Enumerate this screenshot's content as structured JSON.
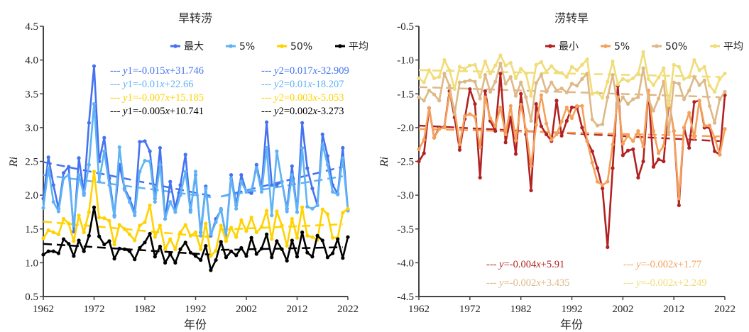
{
  "chart_data": [
    {
      "type": "line",
      "title": "旱转涝",
      "xlabel": "年份",
      "ylabel": "Ri",
      "xlim": [
        1962,
        2022
      ],
      "ylim": [
        0.5,
        4.5
      ],
      "xticks": [
        "1962",
        "1972",
        "1982",
        "1992",
        "2002",
        "2012",
        "2022"
      ],
      "yticks": [
        "0.5",
        "1.0",
        "1.5",
        "2.0",
        "2.5",
        "3.0",
        "3.5",
        "4.0",
        "4.5"
      ],
      "grid": false,
      "legend": "top-right",
      "x_start": 1962,
      "series": [
        {
          "name": "最大",
          "color": "#4472f0",
          "values": [
            1.95,
            2.56,
            2.15,
            1.8,
            2.33,
            2.42,
            1.46,
            2.55,
            2.03,
            3.07,
            3.91,
            2.5,
            2.85,
            2.25,
            1.7,
            2.45,
            2.1,
            1.95,
            1.75,
            2.79,
            2.8,
            2.65,
            1.95,
            2.7,
            1.65,
            2.2,
            1.8,
            2.15,
            2.6,
            1.78,
            2.3,
            1.45,
            2.13,
            1.4,
            1.65,
            1.78,
            1.4,
            2.3,
            1.85,
            2.3,
            2.05,
            2.03,
            2.45,
            2.1,
            3.08,
            2.15,
            2.15,
            2.2,
            1.8,
            2.43,
            1.75,
            3.07,
            2.4,
            2.1,
            1.85,
            2.9,
            2.58,
            2.15,
            2.02,
            2.7,
            1.78
          ]
        },
        {
          "name": "5%",
          "color": "#5fb3f5",
          "values": [
            1.81,
            2.4,
            1.9,
            1.76,
            2.25,
            2.3,
            1.55,
            2.3,
            2.0,
            2.45,
            3.35,
            2.2,
            2.65,
            2.15,
            1.68,
            2.71,
            2.08,
            1.9,
            1.7,
            2.35,
            2.51,
            2.5,
            1.9,
            2.45,
            1.65,
            1.9,
            1.75,
            2.0,
            2.35,
            1.75,
            2.35,
            1.4,
            2.1,
            1.42,
            1.6,
            1.8,
            1.4,
            2.25,
            1.8,
            2.2,
            2.05,
            2.08,
            2.4,
            2.05,
            2.7,
            1.7,
            2.65,
            2.2,
            1.76,
            2.3,
            1.75,
            2.7,
            1.83,
            1.8,
            1.85,
            2.75,
            2.45,
            2.05,
            2.01,
            2.55,
            1.77
          ]
        },
        {
          "name": "50%",
          "color": "#ffd200",
          "values": [
            1.36,
            1.48,
            1.45,
            1.42,
            1.65,
            1.58,
            1.32,
            1.7,
            1.45,
            1.75,
            2.35,
            1.67,
            1.66,
            1.62,
            1.27,
            1.56,
            1.5,
            1.42,
            1.33,
            1.55,
            1.6,
            1.85,
            1.38,
            1.55,
            1.2,
            1.35,
            1.2,
            1.45,
            1.56,
            1.4,
            1.45,
            1.2,
            1.58,
            1.1,
            1.18,
            1.55,
            1.32,
            1.52,
            1.38,
            1.63,
            1.47,
            1.67,
            1.45,
            1.53,
            1.77,
            1.35,
            1.76,
            1.55,
            1.25,
            1.65,
            1.37,
            1.82,
            1.4,
            1.38,
            1.34,
            1.79,
            1.72,
            1.37,
            1.37,
            1.74,
            1.8
          ]
        },
        {
          "name": "平均",
          "color": "#000000",
          "values": [
            1.12,
            1.17,
            1.17,
            1.14,
            1.35,
            1.28,
            1.1,
            1.33,
            1.17,
            1.4,
            1.82,
            1.39,
            1.27,
            1.32,
            1.06,
            1.21,
            1.2,
            1.17,
            1.05,
            1.22,
            1.3,
            1.43,
            1.09,
            1.24,
            1.0,
            1.13,
            1.0,
            1.2,
            1.3,
            1.15,
            1.1,
            1.04,
            1.25,
            0.89,
            1.04,
            1.31,
            1.08,
            1.17,
            1.11,
            1.22,
            1.1,
            1.37,
            1.13,
            1.21,
            1.42,
            1.08,
            1.32,
            1.2,
            1.03,
            1.33,
            1.09,
            1.45,
            1.15,
            1.09,
            1.4,
            1.33,
            1.08,
            1.14,
            1.35,
            1.07,
            1.38
          ]
        }
      ],
      "trend_lines": [
        {
          "series": "最大",
          "color": "#4472f0",
          "segments": [
            {
              "x": [
                1962,
                1995
              ],
              "y": [
                2.49,
                1.99
              ]
            },
            {
              "x": [
                1997,
                2021
              ],
              "y": [
                1.98,
                2.42
              ]
            }
          ]
        },
        {
          "series": "5%",
          "color": "#5fb3f5",
          "segments": [
            {
              "x": [
                1962,
                1995
              ],
              "y": [
                2.3,
                1.97
              ]
            },
            {
              "x": [
                1997,
                2021
              ],
              "y": [
                1.98,
                2.28
              ]
            }
          ]
        },
        {
          "series": "50%",
          "color": "#ffd200",
          "segments": [
            {
              "x": [
                1962,
                1995
              ],
              "y": [
                1.61,
                1.38
              ]
            },
            {
              "x": [
                1997,
                2021
              ],
              "y": [
                1.49,
                1.57
              ]
            }
          ]
        },
        {
          "series": "平均",
          "color": "#000000",
          "segments": [
            {
              "x": [
                1962,
                1995
              ],
              "y": [
                1.28,
                1.12
              ]
            },
            {
              "x": [
                1997,
                2021
              ],
              "y": [
                1.19,
                1.23
              ]
            }
          ]
        }
      ],
      "annotations": {
        "left": [
          {
            "prefix": "y",
            "sub": "1",
            "eq": "=-0.015",
            "x": "x",
            "rest": "+31.746",
            "color": "#4472f0"
          },
          {
            "prefix": "y",
            "sub": "1",
            "eq": "=-0.01",
            "x": "x",
            "rest": "+22.66",
            "color": "#5fb3f5"
          },
          {
            "prefix": "y",
            "sub": "1",
            "eq": "=-0.007",
            "x": "x",
            "rest": "+15.185",
            "color": "#ffd200"
          },
          {
            "prefix": "y",
            "sub": "1",
            "eq": "=-0.005",
            "x": "x",
            "rest": "+10.741",
            "color": "#000000"
          }
        ],
        "right": [
          {
            "prefix": "y",
            "sub": "2",
            "eq": "=0.017",
            "x": "x",
            "rest": "-32.909",
            "color": "#4472f0"
          },
          {
            "prefix": "y",
            "sub": "2",
            "eq": "=0.01",
            "x": "x",
            "rest": "-18.207",
            "color": "#5fb3f5"
          },
          {
            "prefix": "y",
            "sub": "2",
            "eq": "=0.003",
            "x": "x",
            "rest": "-5.053",
            "color": "#ffd200"
          },
          {
            "prefix": "y",
            "sub": "2",
            "eq": "=0.002",
            "x": "x",
            "rest": "-3.273",
            "color": "#000000"
          }
        ]
      }
    },
    {
      "type": "line",
      "title": "涝转旱",
      "xlabel": "年份",
      "ylabel": "Ri",
      "xlim": [
        1962,
        2022
      ],
      "ylim": [
        -4.5,
        -0.5
      ],
      "xticks": [
        "1962",
        "1972",
        "1982",
        "1992",
        "2002",
        "2012",
        "2022"
      ],
      "yticks": [
        "-4.5",
        "-4.0",
        "-3.5",
        "-3.0",
        "-2.5",
        "-2.0",
        "-1.5",
        "-1.0",
        "-0.5"
      ],
      "grid": false,
      "legend": "top-right",
      "x_start": 1962,
      "series": [
        {
          "name": "最小",
          "color": "#b22222",
          "values": [
            -2.5,
            -2.38,
            -1.71,
            -2.15,
            -2.0,
            -1.99,
            -1.46,
            -1.85,
            -2.33,
            -1.87,
            -1.43,
            -1.65,
            -2.74,
            -1.46,
            -1.9,
            -2.05,
            -1.2,
            -2.22,
            -1.85,
            -2.39,
            -1.5,
            -2.1,
            -2.93,
            -1.65,
            -1.98,
            -2.1,
            -2.2,
            -1.6,
            -2.12,
            -1.9,
            -1.7,
            -1.7,
            -2.0,
            -2.2,
            -2.35,
            -2.6,
            -2.9,
            -3.77,
            -2.6,
            -1.38,
            -2.41,
            -2.34,
            -2.32,
            -2.74,
            -2.5,
            -1.45,
            -2.58,
            -2.47,
            -2.5,
            -1.6,
            -2.05,
            -3.15,
            -2.0,
            -2.3,
            -1.62,
            -1.6,
            -2.0,
            -2.0,
            -2.35,
            -2.4,
            -1.52
          ]
        },
        {
          "name": "5%",
          "color": "#f5a05a",
          "values": [
            -2.32,
            -2.18,
            -1.71,
            -2.15,
            -2.02,
            -2.0,
            -1.5,
            -1.73,
            -2.25,
            -1.83,
            -1.8,
            -1.84,
            -2.29,
            -1.55,
            -1.86,
            -1.98,
            -1.7,
            -2.1,
            -1.68,
            -2.19,
            -1.66,
            -2.03,
            -2.57,
            -1.96,
            -1.52,
            -1.94,
            -2.18,
            -2.1,
            -1.91,
            -1.7,
            -1.86,
            -1.68,
            -1.68,
            -2.2,
            -2.52,
            -2.8,
            -2.85,
            -2.8,
            -2.25,
            -1.55,
            -2.24,
            -2.12,
            -2.2,
            -2.05,
            -2.28,
            -1.45,
            -2.05,
            -2.38,
            -2.27,
            -1.59,
            -2.05,
            -3.05,
            -2.0,
            -1.78,
            -2.15,
            -1.6,
            -1.97,
            -1.97,
            -2.15,
            -2.4,
            -2.02
          ]
        },
        {
          "name": "50%",
          "color": "#deb887",
          "values": [
            -1.55,
            -1.6,
            -1.45,
            -1.51,
            -1.6,
            -1.2,
            -1.38,
            -1.8,
            -1.33,
            -1.32,
            -1.3,
            -1.32,
            -1.57,
            -1.22,
            -1.47,
            -1.32,
            -1.05,
            -1.35,
            -1.25,
            -1.53,
            -1.33,
            -1.55,
            -1.9,
            -1.34,
            -1.22,
            -1.47,
            -1.33,
            -1.45,
            -1.42,
            -1.48,
            -1.35,
            -1.38,
            -1.28,
            -1.2,
            -1.88,
            -1.97,
            -1.95,
            -1.55,
            -1.22,
            -1.69,
            -1.55,
            -1.65,
            -1.58,
            -1.55,
            -1.12,
            -1.58,
            -1.75,
            -1.57,
            -1.32,
            -2.07,
            -1.33,
            -1.35,
            -1.58,
            -1.45,
            -1.25,
            -1.37,
            -1.3,
            -1.68,
            -1.93,
            -1.58,
            -1.47
          ]
        },
        {
          "name": "平均",
          "color": "#f0dc78",
          "values": [
            -1.27,
            -1.33,
            -1.15,
            -1.27,
            -1.25,
            -1.0,
            -1.15,
            -1.43,
            -1.1,
            -1.13,
            -1.08,
            -1.07,
            -1.25,
            -1.02,
            -1.2,
            -1.08,
            -0.93,
            -1.08,
            -1.04,
            -1.27,
            -1.13,
            -1.2,
            -1.53,
            -1.07,
            -1.03,
            -1.17,
            -1.09,
            -1.17,
            -1.19,
            -1.25,
            -1.1,
            -1.15,
            -1.07,
            -0.99,
            -1.5,
            -1.48,
            -1.56,
            -1.32,
            -1.02,
            -1.36,
            -1.28,
            -1.31,
            -1.27,
            -1.2,
            -0.88,
            -1.28,
            -1.37,
            -1.26,
            -1.12,
            -1.67,
            -1.07,
            -1.1,
            -1.28,
            -1.25,
            -1.0,
            -1.15,
            -1.1,
            -1.38,
            -1.47,
            -1.28,
            -1.2
          ]
        }
      ],
      "trend_lines": [
        {
          "series": "最小",
          "color": "#b22222",
          "segments": [
            {
              "x": [
                1962,
                2021
              ],
              "y": [
                -1.97,
                -2.2
              ]
            }
          ]
        },
        {
          "series": "5%",
          "color": "#f5a05a",
          "segments": [
            {
              "x": [
                1962,
                2021
              ],
              "y": [
                -2.02,
                -2.13
              ]
            }
          ]
        },
        {
          "series": "50%",
          "color": "#deb887",
          "segments": [
            {
              "x": [
                1962,
                2021
              ],
              "y": [
                -1.4,
                -1.55
              ]
            }
          ]
        },
        {
          "series": "平均",
          "color": "#f0dc78",
          "segments": [
            {
              "x": [
                1962,
                2021
              ],
              "y": [
                -1.15,
                -1.25
              ]
            }
          ]
        }
      ],
      "annotations": {
        "left": [
          {
            "prefix": "y",
            "sub": "",
            "eq": "=-0.004",
            "x": "x",
            "rest": "+5.91",
            "color": "#b22222"
          },
          {
            "prefix": "y",
            "sub": "",
            "eq": "=-0.002",
            "x": "x",
            "rest": "+3.435",
            "color": "#deb887"
          }
        ],
        "right": [
          {
            "prefix": "y",
            "sub": "",
            "eq": "=-0.002",
            "x": "x",
            "rest": "+1.77",
            "color": "#f5a05a"
          },
          {
            "prefix": "y",
            "sub": "",
            "eq": "=-0.002",
            "x": "x",
            "rest": "+2.249",
            "color": "#f0dc78"
          }
        ]
      }
    }
  ]
}
